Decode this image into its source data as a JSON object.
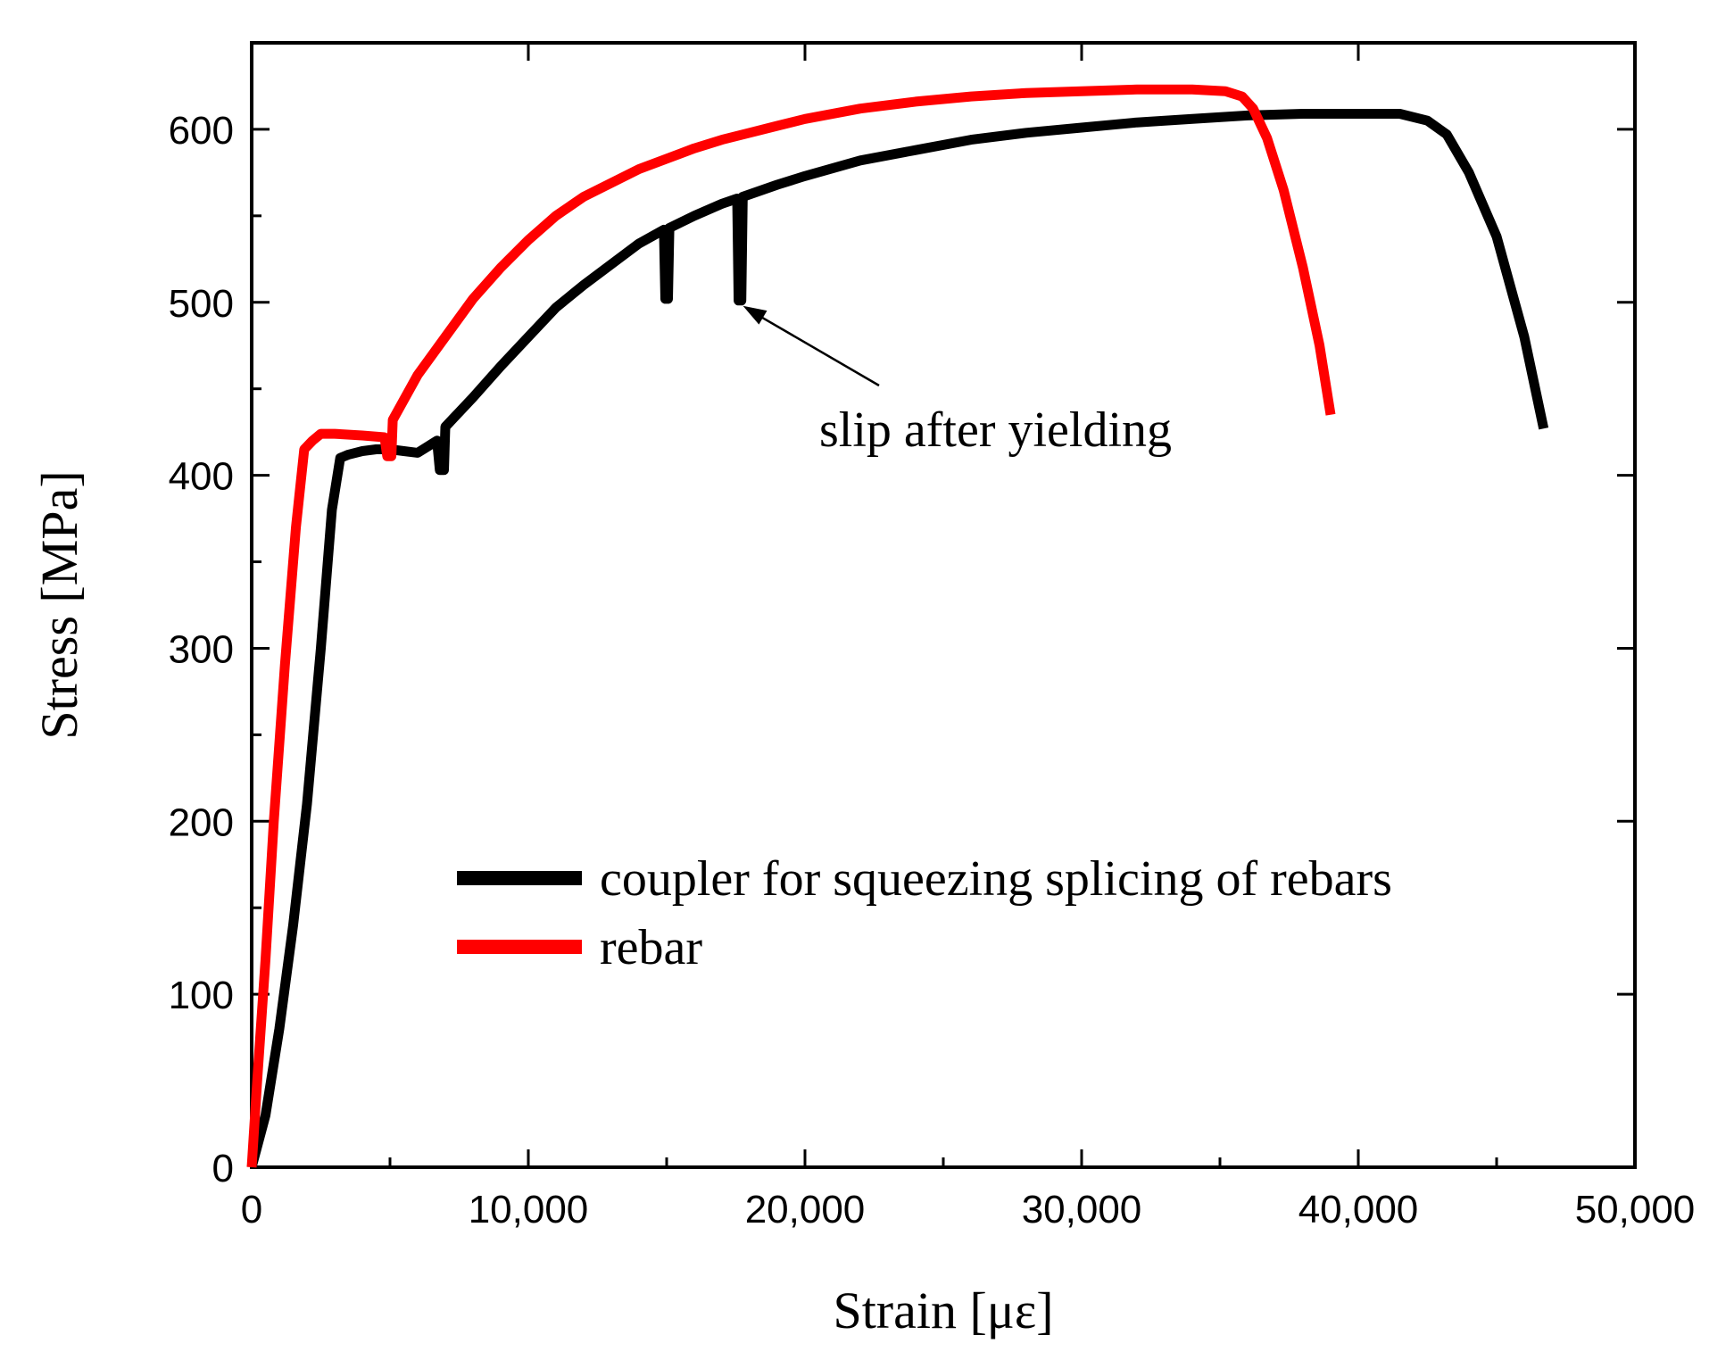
{
  "chart_data": {
    "type": "line",
    "title": "",
    "xlabel": "Strain [με]",
    "ylabel": "Stress [MPa]",
    "xlim": [
      0,
      50000
    ],
    "ylim": [
      0,
      650
    ],
    "xticks": [
      0,
      10000,
      20000,
      30000,
      40000,
      50000
    ],
    "xtick_labels": [
      "0",
      "10,000",
      "20,000",
      "30,000",
      "40,000",
      "50,000"
    ],
    "yticks": [
      0,
      100,
      200,
      300,
      400,
      500,
      600
    ],
    "ytick_labels": [
      "0",
      "100",
      "200",
      "300",
      "400",
      "500",
      "600"
    ],
    "legend_position": "lower-right",
    "annotation": {
      "text": "slip after yielding",
      "target": [
        17500,
        500
      ]
    },
    "series": [
      {
        "name": "coupler for squeezing splicing of rebars",
        "color": "#000000",
        "points": [
          [
            0,
            0
          ],
          [
            500,
            30
          ],
          [
            1000,
            80
          ],
          [
            1500,
            140
          ],
          [
            2000,
            210
          ],
          [
            2500,
            300
          ],
          [
            2900,
            380
          ],
          [
            3200,
            410
          ],
          [
            3500,
            412
          ],
          [
            4000,
            414
          ],
          [
            4500,
            415
          ],
          [
            5000,
            415
          ],
          [
            5500,
            414
          ],
          [
            6000,
            413
          ],
          [
            6500,
            418
          ],
          [
            6700,
            420
          ],
          [
            6800,
            403
          ],
          [
            6950,
            403
          ],
          [
            7000,
            428
          ],
          [
            8000,
            445
          ],
          [
            9000,
            463
          ],
          [
            10000,
            480
          ],
          [
            11000,
            497
          ],
          [
            12000,
            510
          ],
          [
            13000,
            522
          ],
          [
            14000,
            534
          ],
          [
            14900,
            542
          ],
          [
            14950,
            502
          ],
          [
            15050,
            502
          ],
          [
            15100,
            543
          ],
          [
            16000,
            550
          ],
          [
            17000,
            557
          ],
          [
            17550,
            560
          ],
          [
            17600,
            501
          ],
          [
            17700,
            501
          ],
          [
            17750,
            561
          ],
          [
            19000,
            568
          ],
          [
            20000,
            573
          ],
          [
            22000,
            582
          ],
          [
            24000,
            588
          ],
          [
            26000,
            594
          ],
          [
            28000,
            598
          ],
          [
            30000,
            601
          ],
          [
            32000,
            604
          ],
          [
            34000,
            606
          ],
          [
            36000,
            608
          ],
          [
            38000,
            609
          ],
          [
            40000,
            609
          ],
          [
            41500,
            609
          ],
          [
            42500,
            605
          ],
          [
            43200,
            597
          ],
          [
            44000,
            575
          ],
          [
            45000,
            538
          ],
          [
            46000,
            480
          ],
          [
            46700,
            427
          ]
        ]
      },
      {
        "name": "rebar",
        "color": "#ff0000",
        "points": [
          [
            0,
            0
          ],
          [
            200,
            50
          ],
          [
            500,
            120
          ],
          [
            800,
            200
          ],
          [
            1200,
            290
          ],
          [
            1600,
            370
          ],
          [
            1900,
            415
          ],
          [
            2200,
            420
          ],
          [
            2500,
            424
          ],
          [
            3000,
            424
          ],
          [
            4000,
            423
          ],
          [
            4800,
            422
          ],
          [
            4900,
            411
          ],
          [
            5050,
            411
          ],
          [
            5100,
            432
          ],
          [
            6000,
            458
          ],
          [
            7000,
            480
          ],
          [
            8000,
            502
          ],
          [
            9000,
            520
          ],
          [
            10000,
            536
          ],
          [
            11000,
            550
          ],
          [
            12000,
            561
          ],
          [
            13000,
            569
          ],
          [
            14000,
            577
          ],
          [
            15000,
            583
          ],
          [
            16000,
            589
          ],
          [
            17000,
            594
          ],
          [
            18000,
            598
          ],
          [
            19000,
            602
          ],
          [
            20000,
            606
          ],
          [
            22000,
            612
          ],
          [
            24000,
            616
          ],
          [
            26000,
            619
          ],
          [
            28000,
            621
          ],
          [
            30000,
            622
          ],
          [
            32000,
            623
          ],
          [
            34000,
            623
          ],
          [
            35200,
            622
          ],
          [
            35800,
            619
          ],
          [
            36200,
            612
          ],
          [
            36700,
            595
          ],
          [
            37300,
            565
          ],
          [
            38000,
            520
          ],
          [
            38600,
            475
          ],
          [
            39000,
            435
          ]
        ]
      }
    ]
  }
}
